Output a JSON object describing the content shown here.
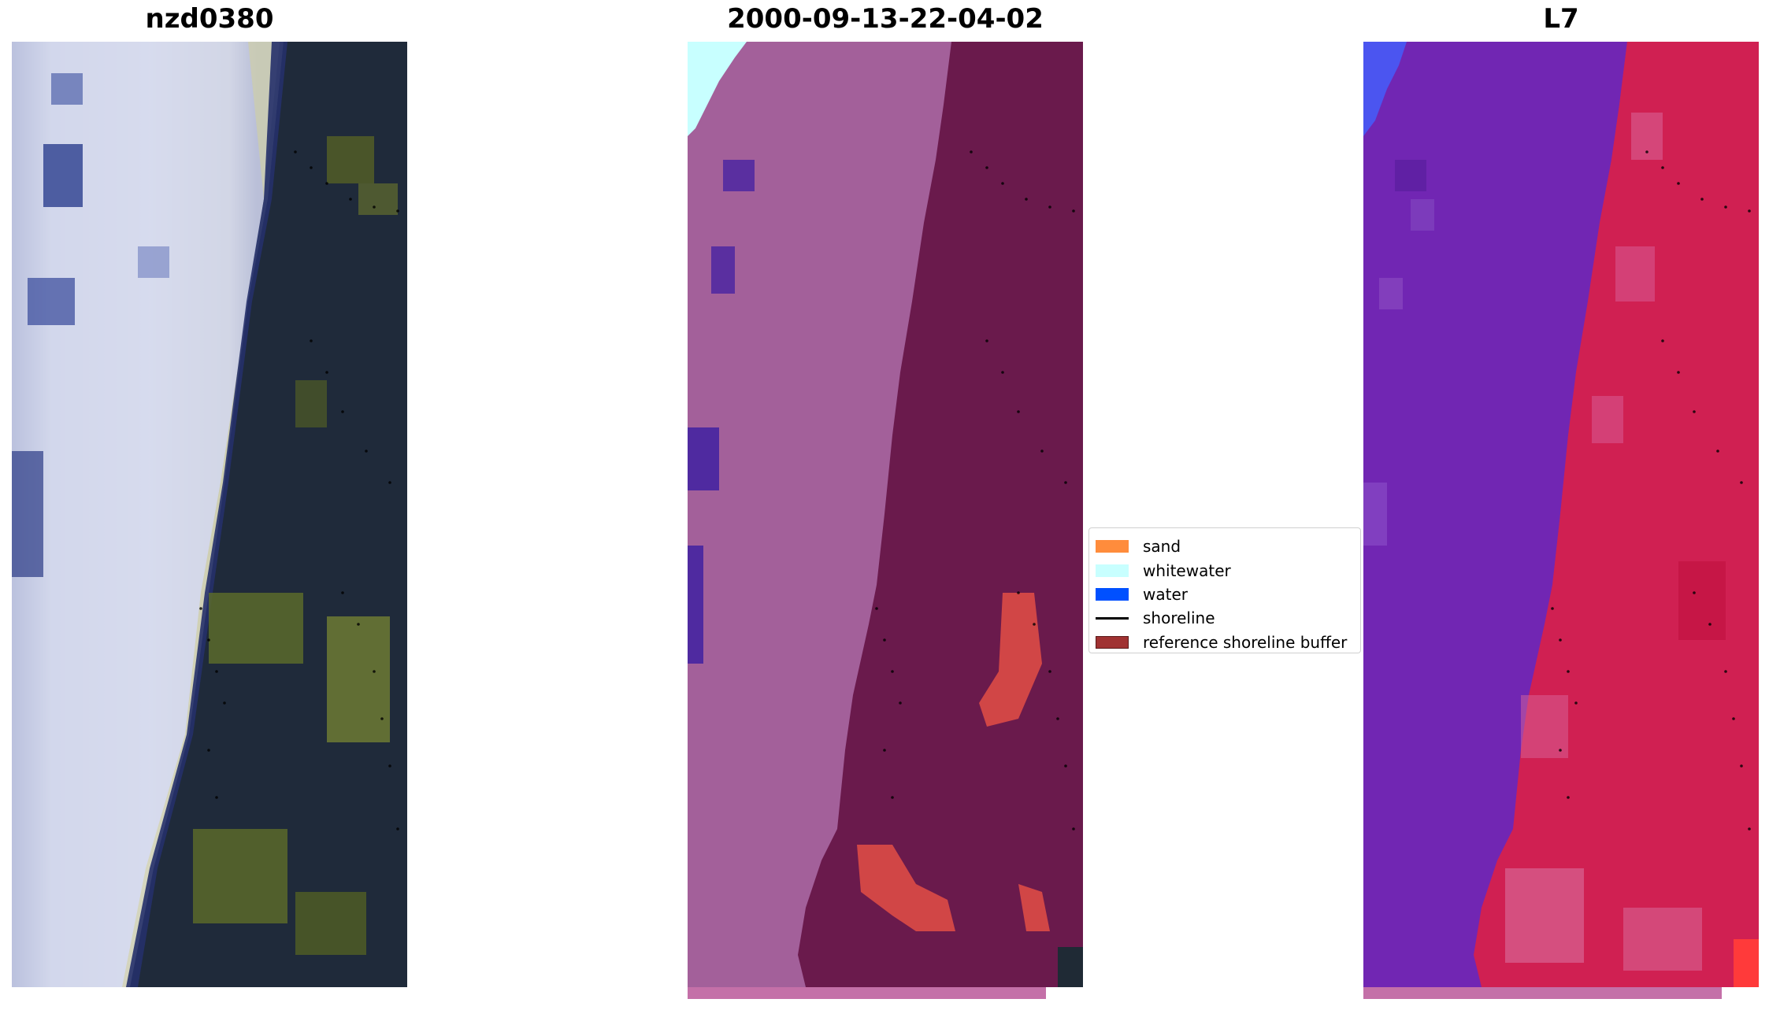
{
  "panels": {
    "left_title": "nzd0380",
    "center_title": "2000-09-13-22-04-02",
    "right_title": "L7"
  },
  "legend": {
    "items": [
      {
        "label": "sand",
        "color": "#ff8c3c"
      },
      {
        "label": "whitewater",
        "color": "#c8ffff"
      },
      {
        "label": "water",
        "color": "#0050ff"
      },
      {
        "label": "shoreline",
        "color": "#000000"
      },
      {
        "label": "reference shoreline buffer",
        "color": "#a03232"
      }
    ]
  },
  "colors": {
    "rgb_surf": "#d8dcef",
    "rgb_water": "#1e2a55",
    "rgb_land": "#1f2a35",
    "rgb_veg": "#5e6a2a",
    "class_water": "#a3609a",
    "class_land": "#6a1a4c",
    "class_sand": "#d14646",
    "index_water": "#6a1fb2",
    "index_land": "#d01f4f"
  }
}
